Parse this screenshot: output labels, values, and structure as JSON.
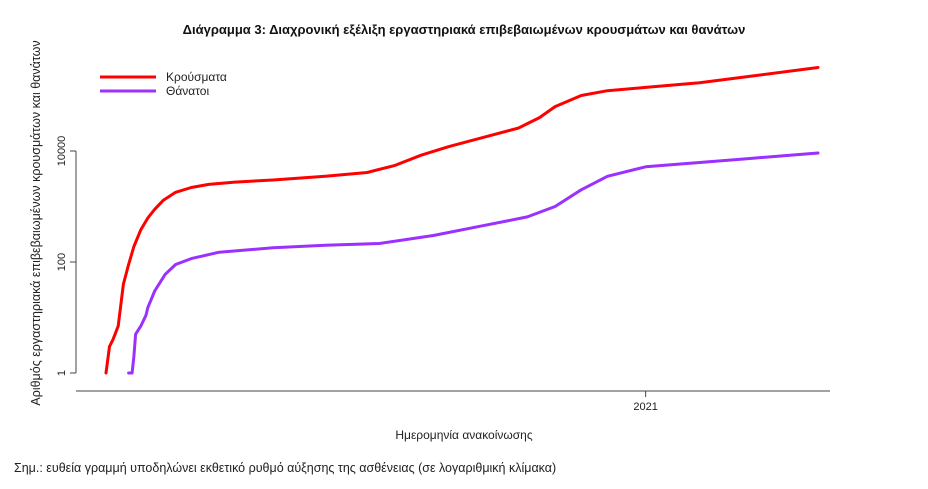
{
  "chart_data": {
    "type": "line",
    "title": "Διάγραμμα 3: Διαχρονική εξέλιξη εργαστηριακά επιβεβαιωμένων κρουσμάτων και θανάτων",
    "xlabel": "Ημερομηνία ανακοίνωσης",
    "ylabel": "Αριθμός εργαστηριακά επιβεβαιωμένων κρουσμάτων και θανάτων",
    "y_scale": "log",
    "ylim": [
      0.7,
      600000
    ],
    "y_ticks": [
      1,
      100,
      10000
    ],
    "y_tick_labels": [
      "1",
      "100",
      "10000"
    ],
    "x_range": [
      "2020-02-26",
      "2021-04-10"
    ],
    "x_ticks": [
      "2021-01-01"
    ],
    "x_tick_labels": [
      "2021"
    ],
    "grid": false,
    "legend_position": "top-left",
    "series": [
      {
        "name": "Κρούσματα",
        "color": "#ff0000",
        "points": [
          [
            "2020-02-26",
            1
          ],
          [
            "2020-02-28",
            3
          ],
          [
            "2020-03-01",
            4
          ],
          [
            "2020-03-04",
            7
          ],
          [
            "2020-03-07",
            40
          ],
          [
            "2020-03-10",
            90
          ],
          [
            "2020-03-13",
            190
          ],
          [
            "2020-03-17",
            380
          ],
          [
            "2020-03-21",
            620
          ],
          [
            "2020-03-25",
            890
          ],
          [
            "2020-03-30",
            1300
          ],
          [
            "2020-04-06",
            1800
          ],
          [
            "2020-04-15",
            2200
          ],
          [
            "2020-04-25",
            2500
          ],
          [
            "2020-05-10",
            2750
          ],
          [
            "2020-06-01",
            3000
          ],
          [
            "2020-07-01",
            3500
          ],
          [
            "2020-07-25",
            4100
          ],
          [
            "2020-08-10",
            5500
          ],
          [
            "2020-08-25",
            8400
          ],
          [
            "2020-09-10",
            12000
          ],
          [
            "2020-10-01",
            18000
          ],
          [
            "2020-10-20",
            26000
          ],
          [
            "2020-11-01",
            40000
          ],
          [
            "2020-11-10",
            63000
          ],
          [
            "2020-11-25",
            100000
          ],
          [
            "2020-12-10",
            122000
          ],
          [
            "2021-01-01",
            140000
          ],
          [
            "2021-02-01",
            170000
          ],
          [
            "2021-03-01",
            220000
          ],
          [
            "2021-04-10",
            320000
          ]
        ]
      },
      {
        "name": "Θάνατοι",
        "color": "#9b30ff",
        "points": [
          [
            "2020-03-10",
            1
          ],
          [
            "2020-03-12",
            1
          ],
          [
            "2020-03-13",
            2
          ],
          [
            "2020-03-14",
            5
          ],
          [
            "2020-03-17",
            7
          ],
          [
            "2020-03-20",
            11
          ],
          [
            "2020-03-21",
            15
          ],
          [
            "2020-03-25",
            30
          ],
          [
            "2020-03-31",
            60
          ],
          [
            "2020-04-06",
            90
          ],
          [
            "2020-04-15",
            115
          ],
          [
            "2020-05-01",
            150
          ],
          [
            "2020-06-01",
            180
          ],
          [
            "2020-07-01",
            200
          ],
          [
            "2020-08-01",
            215
          ],
          [
            "2020-09-01",
            300
          ],
          [
            "2020-10-01",
            460
          ],
          [
            "2020-10-25",
            650
          ],
          [
            "2020-11-10",
            1000
          ],
          [
            "2020-11-25",
            2000
          ],
          [
            "2020-12-10",
            3500
          ],
          [
            "2021-01-01",
            5200
          ],
          [
            "2021-02-01",
            6200
          ],
          [
            "2021-03-01",
            7300
          ],
          [
            "2021-04-10",
            9200
          ]
        ]
      }
    ]
  },
  "note": "Σημ.: ευθεία γραμμή υποδηλώνει εκθετικό ρυθμό αύξησης της ασθένειας (σε λογαριθμική κλίμακα)"
}
